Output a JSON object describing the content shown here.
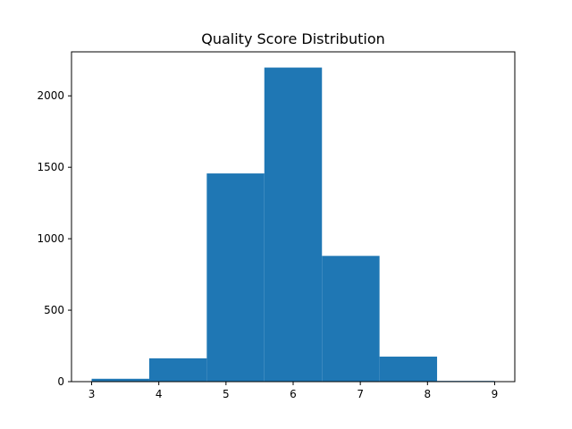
{
  "chart_data": {
    "type": "bar",
    "title": "Quality Score Distribution",
    "xlabel": "",
    "ylabel": "",
    "bins": [
      {
        "x0": 3.0,
        "x1": 3.857,
        "value": 20
      },
      {
        "x0": 3.857,
        "x1": 4.714,
        "value": 163
      },
      {
        "x0": 4.714,
        "x1": 5.571,
        "value": 1457
      },
      {
        "x0": 5.571,
        "x1": 6.429,
        "value": 2198
      },
      {
        "x0": 6.429,
        "x1": 7.286,
        "value": 880
      },
      {
        "x0": 7.286,
        "x1": 8.143,
        "value": 175
      },
      {
        "x0": 8.143,
        "x1": 9.0,
        "value": 5
      }
    ],
    "xlim": [
      2.7,
      9.3
    ],
    "ylim": [
      0,
      2308
    ],
    "x_ticks": [
      3,
      4,
      5,
      6,
      7,
      8,
      9
    ],
    "y_ticks": [
      0,
      500,
      1000,
      1500,
      2000
    ],
    "grid": false,
    "legend": "none",
    "bar_color": "#1f77b4"
  }
}
